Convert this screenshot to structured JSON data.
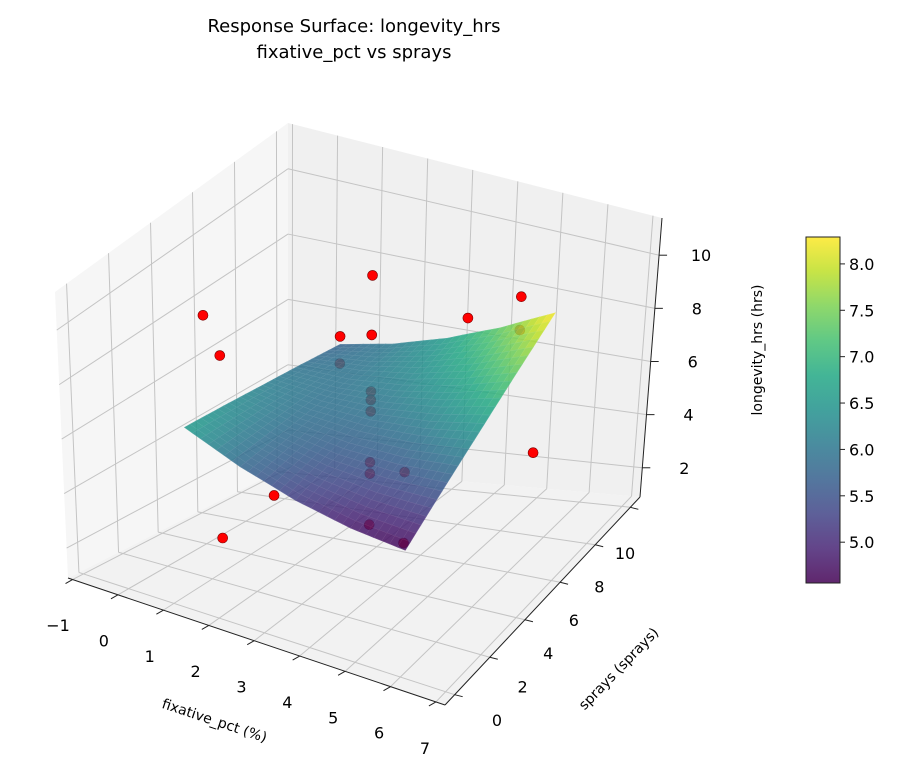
{
  "chart_data": {
    "type": "surface3d",
    "title": "Response Surface: longevity_hrs",
    "subtitle": "fixative_pct vs sprays",
    "xlabel": "fixative_pct (%)",
    "ylabel": "sprays (sprays)",
    "zlabel": "longevity_hrs (hrs)",
    "xlim": [
      -1.1,
      7.2
    ],
    "ylim": [
      -0.55,
      10.55
    ],
    "zlim": [
      0.9,
      11.4
    ],
    "grid": true,
    "x_ticks": [
      -1,
      0,
      1,
      2,
      3,
      4,
      5,
      6,
      7
    ],
    "x_tick_labels": [
      "−1",
      "0",
      "1",
      "2",
      "3",
      "4",
      "5",
      "6",
      "7"
    ],
    "y_ticks": [
      0,
      2,
      4,
      6,
      8,
      10
    ],
    "y_tick_labels": [
      "0",
      "2",
      "4",
      "6",
      "8",
      "10"
    ],
    "z_ticks": [
      2,
      4,
      6,
      8,
      10
    ],
    "z_tick_labels": [
      "2",
      "4",
      "6",
      "8",
      "10"
    ],
    "surface": {
      "colormap": "viridis",
      "alpha": 0.85,
      "x": [
        0.8,
        2.0,
        3.2,
        4.4,
        5.6
      ],
      "y": [
        1.2,
        3.15,
        5.1,
        7.05,
        9.0
      ],
      "z": [
        [
          6.6,
          5.8,
          5.2,
          4.8,
          4.6
        ],
        [
          6.38,
          5.86,
          5.55,
          5.44,
          5.53
        ],
        [
          6.15,
          5.93,
          5.9,
          6.08,
          6.45
        ],
        [
          5.93,
          5.99,
          6.25,
          6.71,
          7.38
        ],
        [
          5.7,
          6.05,
          6.6,
          7.35,
          8.3
        ]
      ]
    },
    "point_color": "#ff0000",
    "points": [
      {
        "x": 3.2,
        "y": 5.1,
        "z": 11.0
      },
      {
        "x": 3.2,
        "y": 5.1,
        "z": 8.9
      },
      {
        "x": 3.2,
        "y": 5.1,
        "z": 6.9
      },
      {
        "x": 3.2,
        "y": 5.1,
        "z": 6.6
      },
      {
        "x": 3.2,
        "y": 5.1,
        "z": 6.2
      },
      {
        "x": 3.2,
        "y": 5.1,
        "z": 4.4
      },
      {
        "x": 3.2,
        "y": 5.1,
        "z": 4.0
      },
      {
        "x": 3.2,
        "y": 5.1,
        "z": 2.2
      },
      {
        "x": 1.2,
        "y": 2.1,
        "z": 2.4
      },
      {
        "x": 1.2,
        "y": 2.1,
        "z": 8.9
      },
      {
        "x": 5.2,
        "y": 2.1,
        "z": 4.1
      },
      {
        "x": 5.2,
        "y": 2.1,
        "z": 6.7
      },
      {
        "x": 1.2,
        "y": 8.1,
        "z": 6.5
      },
      {
        "x": 1.2,
        "y": 8.1,
        "z": 5.6
      },
      {
        "x": 5.2,
        "y": 8.1,
        "z": 9.3
      },
      {
        "x": 5.2,
        "y": 8.1,
        "z": 8.1
      },
      {
        "x": 3.2,
        "y": 0.1,
        "z": 6.0
      },
      {
        "x": 3.2,
        "y": 10.1,
        "z": 6.7
      },
      {
        "x": -0.5,
        "y": 5.1,
        "z": 8.0
      },
      {
        "x": 6.8,
        "y": 5.1,
        "z": 6.2
      }
    ],
    "colorbar": {
      "range": [
        4.56,
        8.29
      ],
      "ticks": [
        5.0,
        5.5,
        6.0,
        6.5,
        7.0,
        7.5,
        8.0
      ],
      "tick_labels": [
        "5.0",
        "5.5",
        "6.0",
        "6.5",
        "7.0",
        "7.5",
        "8.0"
      ]
    }
  }
}
